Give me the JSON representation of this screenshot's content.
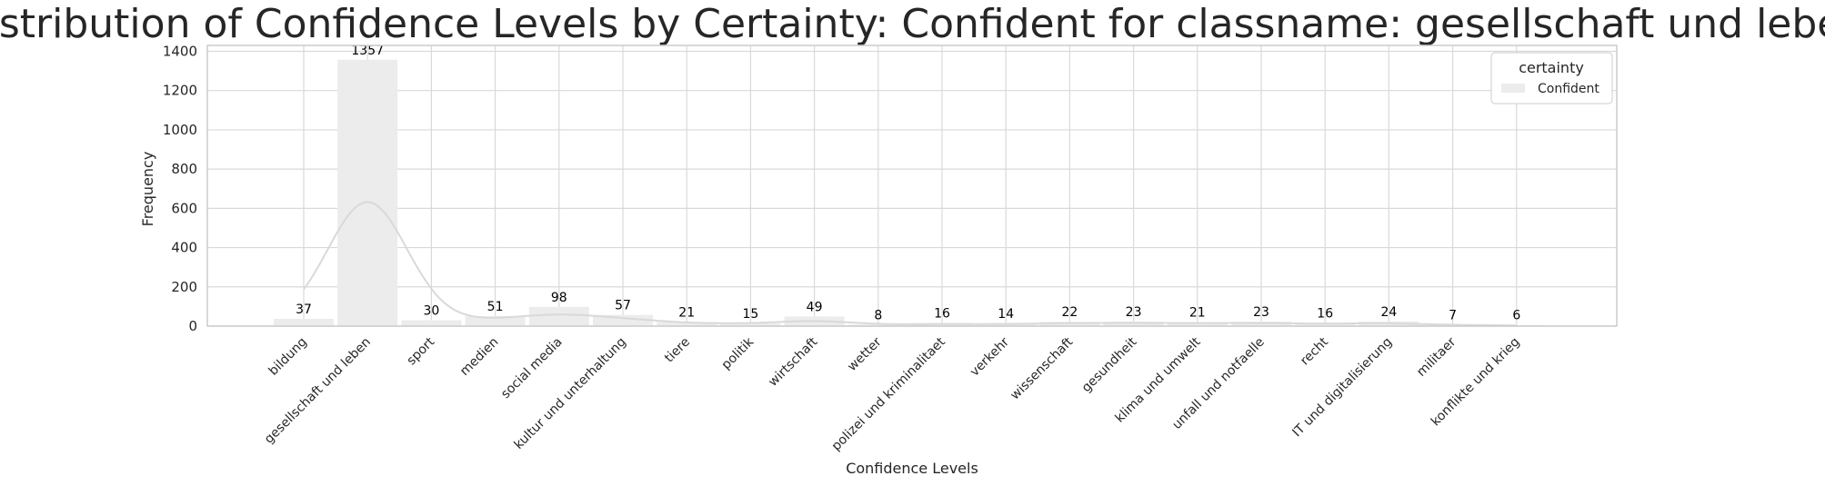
{
  "chart_data": {
    "type": "bar",
    "title": "Distribution of Confidence Levels by Certainty: Confident for classname: gesellschaft und leben",
    "xlabel": "Confidence Levels",
    "ylabel": "Frequency",
    "ylim": [
      0,
      1430
    ],
    "yticks": [
      "0",
      "200",
      "400",
      "600",
      "800",
      "1000",
      "1200",
      "1400"
    ],
    "grid": true,
    "legend": {
      "title": "certainty",
      "placement": "top-right",
      "entries": [
        "Confident"
      ]
    },
    "categories": [
      "bildung",
      "gesellschaft und leben",
      "sport",
      "medien",
      "social media",
      "kultur und unterhaltung",
      "tiere",
      "politik",
      "wirtschaft",
      "wetter",
      "polizei und kriminalitaet",
      "verkehr",
      "wissenschaft",
      "gesundheit",
      "klima und umwelt",
      "unfall und notfaelle",
      "recht",
      "IT und digitalisierung",
      "militaer",
      "konflikte und krieg"
    ],
    "series": [
      {
        "name": "Confident",
        "values": [
          37,
          1357,
          30,
          51,
          98,
          57,
          21,
          15,
          49,
          8,
          16,
          14,
          22,
          23,
          21,
          23,
          16,
          24,
          7,
          6
        ]
      }
    ],
    "kde_curve": "smooth density curve peaking near 630 over 'gesellschaft und leben', starting near 340 over 'bildung', decaying toward 0 by 'konflikte und krieg'",
    "colors": {
      "bar": "#ececec",
      "kde": "#d9d9d9",
      "grid": "#d9d9d9",
      "axes": "#cccccc"
    }
  }
}
